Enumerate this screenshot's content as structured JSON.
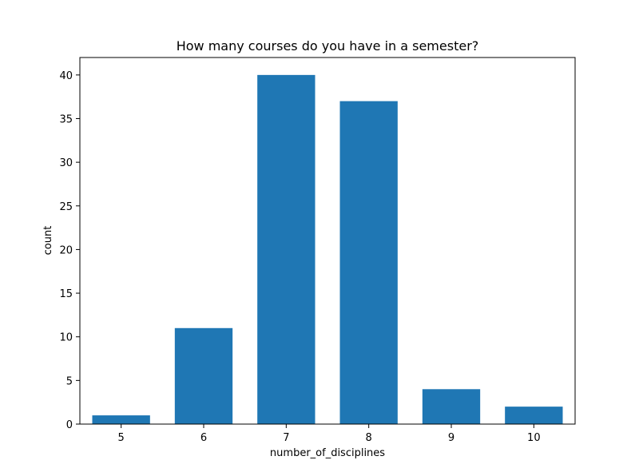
{
  "chart_data": {
    "type": "bar",
    "title": "How many courses do you have in a semester?",
    "xlabel": "number_of_disciplines",
    "ylabel": "count",
    "categories": [
      "5",
      "6",
      "7",
      "8",
      "9",
      "10"
    ],
    "values": [
      1,
      11,
      40,
      37,
      4,
      2
    ],
    "ylim": [
      0,
      42
    ],
    "yticks": [
      "0",
      "5",
      "10",
      "15",
      "20",
      "25",
      "30",
      "35",
      "40"
    ],
    "grid": false,
    "legend": "none",
    "bar_color": "#1f77b4"
  }
}
